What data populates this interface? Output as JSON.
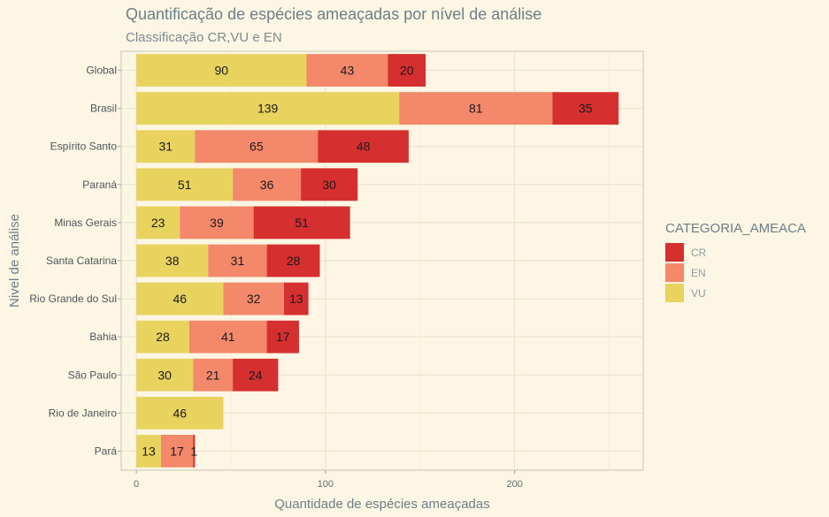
{
  "chart_data": {
    "type": "bar",
    "orientation": "horizontal",
    "stacked": true,
    "title": "Quantificação de espécies ameaçadas por nível de análise",
    "subtitle": "Classificação CR,VU e EN",
    "xlabel": "Quantidade de espécies ameaçadas",
    "ylabel": "Nivel de análise",
    "xlim": [
      -8,
      268
    ],
    "xticks": [
      0,
      100,
      200
    ],
    "grid": true,
    "legend_position": "right",
    "legend_title": "CATEGORIA_AMEACA",
    "categories": [
      "Global",
      "Brasil",
      "Espírito Santo",
      "Paraná",
      "Minas Gerais",
      "Santa Catarina",
      "Rio Grande do Sul",
      "Bahia",
      "São Paulo",
      "Rio de Janeiro",
      "Pará"
    ],
    "series": [
      {
        "name": "VU",
        "color": "#e8d35f",
        "values": [
          90,
          139,
          31,
          51,
          23,
          38,
          46,
          28,
          30,
          46,
          13
        ]
      },
      {
        "name": "EN",
        "color": "#f4886a",
        "values": [
          43,
          81,
          65,
          36,
          39,
          31,
          32,
          41,
          21,
          0,
          17
        ]
      },
      {
        "name": "CR",
        "color": "#d62f2f",
        "values": [
          20,
          35,
          48,
          30,
          51,
          28,
          13,
          17,
          24,
          0,
          1
        ]
      }
    ],
    "legend_order": [
      "CR",
      "EN",
      "VU"
    ]
  }
}
